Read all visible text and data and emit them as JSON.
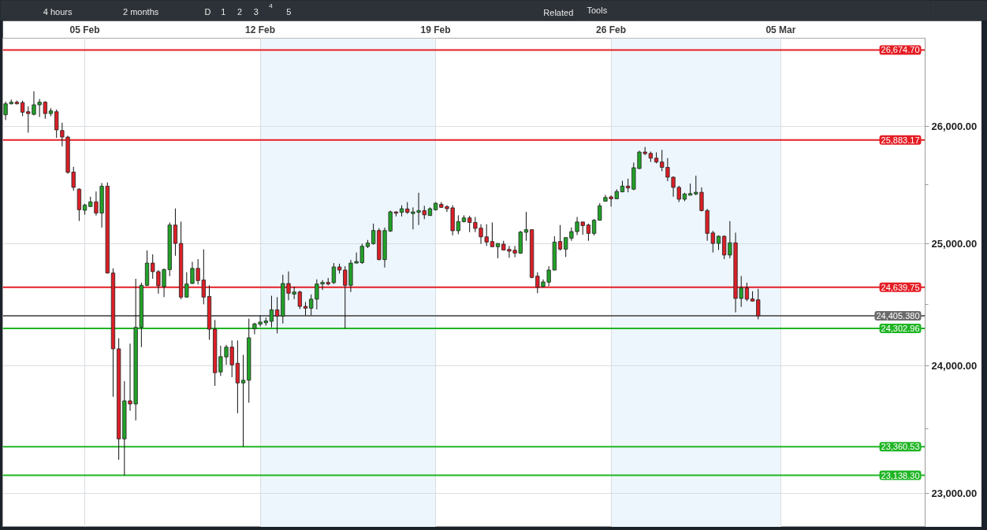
{
  "chart_data": {
    "type": "candlestick",
    "log": true,
    "grid": true,
    "categories": [
      null,
      null,
      null,
      null,
      null,
      null,
      null,
      null,
      null,
      null,
      null,
      null,
      null,
      null,
      "05 Feb",
      null,
      null,
      null,
      null,
      null,
      null,
      null,
      null,
      null,
      null,
      null,
      null,
      null,
      null,
      null,
      null,
      null,
      null,
      null,
      null,
      null,
      null,
      null,
      null,
      null,
      null,
      null,
      null,
      null,
      null,
      "12 Feb",
      null,
      null,
      null,
      null,
      null,
      null,
      null,
      null,
      null,
      null,
      null,
      null,
      null,
      null,
      null,
      null,
      null,
      null,
      null,
      null,
      null,
      null,
      null,
      null,
      null,
      null,
      null,
      null,
      null,
      null,
      "19 Feb",
      null,
      null,
      null,
      null,
      null,
      null,
      null,
      null,
      null,
      null,
      null,
      null,
      null,
      null,
      null,
      null,
      null,
      null,
      null,
      null,
      null,
      null,
      null,
      null,
      null,
      null,
      null,
      null,
      null,
      null,
      "26 Feb",
      null,
      null,
      null,
      null,
      null,
      null,
      null,
      null,
      null,
      null,
      null,
      null,
      null,
      null,
      null,
      null,
      null,
      null,
      null,
      null,
      null,
      null,
      null,
      null,
      null,
      null,
      null,
      null,
      null,
      "05 Mar",
      null,
      null,
      null,
      null,
      null,
      null,
      null,
      null,
      null,
      null,
      null,
      null,
      null,
      null,
      null,
      null,
      null,
      null,
      null,
      null,
      null,
      null,
      null,
      null,
      null
    ],
    "ohlc": [
      [
        26103,
        26218,
        26057,
        26199
      ],
      [
        26199,
        26236,
        26194,
        26213
      ],
      [
        26213,
        26227,
        26194,
        26199
      ],
      [
        26210,
        26227,
        26091,
        26125
      ],
      [
        26130,
        26176,
        25947,
        26114
      ],
      [
        26107,
        26309,
        26098,
        26190
      ],
      [
        26190,
        26241,
        26084,
        26213
      ],
      [
        26213,
        26222,
        26068,
        26114
      ],
      [
        26114,
        26160,
        26091,
        26137
      ],
      [
        26130,
        26149,
        25902,
        25971
      ],
      [
        25966,
        26034,
        25829,
        25909
      ],
      [
        25909,
        25920,
        25594,
        25605
      ],
      [
        25608,
        25653,
        25449,
        25477
      ],
      [
        25462,
        25469,
        25192,
        25287
      ],
      [
        25283,
        25338,
        25246,
        25327
      ],
      [
        25314,
        25397,
        25310,
        25354
      ],
      [
        25354,
        25442,
        25238,
        25259
      ],
      [
        25259,
        25514,
        25137,
        25487
      ],
      [
        25487,
        25519,
        24753,
        24758
      ],
      [
        24758,
        24796,
        23754,
        24138
      ],
      [
        24138,
        24223,
        23259,
        23422
      ],
      [
        23422,
        23879,
        23138.3,
        23722
      ],
      [
        23722,
        24180,
        23643,
        23697
      ],
      [
        23697,
        24710,
        23567,
        24312
      ],
      [
        24312,
        24678,
        24152,
        24656
      ],
      [
        24656,
        24945,
        24650,
        24840
      ],
      [
        24840,
        24913,
        24710,
        24769
      ],
      [
        24769,
        24782,
        24587,
        24652
      ],
      [
        24645,
        24796,
        24559,
        24786
      ],
      [
        24786,
        25180,
        24732,
        25158
      ],
      [
        25158,
        25298,
        24901,
        25004
      ],
      [
        25004,
        25187,
        24542,
        24559
      ],
      [
        24559,
        24764,
        24555,
        24667
      ],
      [
        24671,
        24851,
        24668,
        24796
      ],
      [
        24796,
        24873,
        24663,
        24695
      ],
      [
        24700,
        24954,
        24500,
        24559
      ],
      [
        24564,
        24656,
        24212,
        24297
      ],
      [
        24297,
        24372,
        23841,
        23946
      ],
      [
        23952,
        24163,
        23920,
        24075
      ],
      [
        24073,
        24170,
        24009,
        24152
      ],
      [
        24152,
        24206,
        23910,
        24009
      ],
      [
        24022,
        24206,
        23624,
        23864
      ],
      [
        23864,
        24089,
        23360.53,
        23886
      ],
      [
        23886,
        24383,
        23707,
        24227
      ],
      [
        24301,
        24349,
        24255,
        24340
      ],
      [
        24337,
        24409,
        24318,
        24355
      ],
      [
        24349,
        24391,
        24325,
        24364
      ],
      [
        24361,
        24570,
        24312,
        24455
      ],
      [
        24455,
        24559,
        24263,
        24403
      ],
      [
        24403,
        24743,
        24343,
        24671
      ],
      [
        24671,
        24771,
        24533,
        24591
      ],
      [
        24584,
        24645,
        24542,
        24601
      ],
      [
        24601,
        24612,
        24461,
        24483
      ],
      [
        24483,
        24519,
        24409,
        24468
      ],
      [
        24468,
        24581,
        24409,
        24542
      ],
      [
        24542,
        24705,
        24458,
        24667
      ],
      [
        24667,
        24699,
        24618,
        24680
      ],
      [
        24680,
        24717,
        24656,
        24667
      ],
      [
        24678,
        24840,
        24667,
        24808
      ],
      [
        24808,
        24835,
        24753,
        24782
      ],
      [
        24782,
        24814,
        24302.96,
        24656
      ],
      [
        24656,
        24867,
        24601,
        24840
      ],
      [
        24840,
        24928,
        24838,
        24853
      ],
      [
        24844,
        25002,
        24833,
        24980
      ],
      [
        24978,
        25033,
        24965,
        25007
      ],
      [
        25002,
        25170,
        24993,
        25112
      ],
      [
        25112,
        25132,
        24863,
        24869
      ],
      [
        24869,
        25137,
        24803,
        25112
      ],
      [
        25108,
        25280,
        25099,
        25269
      ],
      [
        25269,
        25273,
        25231,
        25258
      ],
      [
        25265,
        25325,
        25231,
        25296
      ],
      [
        25294,
        25352,
        25252,
        25265
      ],
      [
        25255,
        25307,
        25121,
        25269
      ],
      [
        25265,
        25431,
        25158,
        25280
      ],
      [
        25280,
        25320,
        25208,
        25244
      ],
      [
        25238,
        25307,
        25238,
        25296
      ],
      [
        25287,
        25352,
        25280,
        25342
      ],
      [
        25333,
        25352,
        25302,
        25307
      ],
      [
        25314,
        25325,
        25269,
        25296
      ],
      [
        25303,
        25325,
        25071,
        25110
      ],
      [
        25110,
        25240,
        25081,
        25187
      ],
      [
        25187,
        25240,
        25180,
        25218
      ],
      [
        25218,
        25236,
        25099,
        25180
      ],
      [
        25180,
        25226,
        25099,
        25130
      ],
      [
        25132,
        25165,
        25000,
        25059
      ],
      [
        25059,
        25165,
        24983,
        25015
      ],
      [
        25020,
        25180,
        24976,
        24976
      ],
      [
        24976,
        25004,
        24880,
        25004
      ],
      [
        24998,
        25026,
        24945,
        24949
      ],
      [
        24954,
        24983,
        24884,
        24939
      ],
      [
        24947,
        24983,
        24889,
        24923
      ],
      [
        24923,
        25108,
        24917,
        25099
      ],
      [
        25097,
        25269,
        25026,
        25119
      ],
      [
        25119,
        25119,
        24714,
        24721
      ],
      [
        24732,
        24764,
        24591,
        24639.75
      ],
      [
        24645,
        24705,
        24640,
        24684
      ],
      [
        24682,
        24814,
        24649,
        24782
      ],
      [
        24782,
        25064,
        24780,
        25015
      ],
      [
        25020,
        25158,
        24945,
        24956
      ],
      [
        24956,
        25053,
        24891,
        25053
      ],
      [
        25048,
        25137,
        25026,
        25103
      ],
      [
        25103,
        25226,
        25074,
        25184
      ],
      [
        25184,
        25184,
        25077,
        25153
      ],
      [
        25158,
        25170,
        25026,
        25088
      ],
      [
        25088,
        25209,
        25071,
        25198
      ],
      [
        25198,
        25342,
        25196,
        25320
      ],
      [
        25359,
        25413,
        25359,
        25391
      ],
      [
        25396,
        25409,
        25314,
        25380
      ],
      [
        25380,
        25460,
        25380,
        25442
      ],
      [
        25439,
        25533,
        25435,
        25488
      ],
      [
        25488,
        25551,
        25435,
        25472
      ],
      [
        25462,
        25689,
        25453,
        25645
      ],
      [
        25638,
        25791,
        25633,
        25780
      ],
      [
        25780,
        25823,
        25753,
        25766
      ],
      [
        25768,
        25784,
        25694,
        25727
      ],
      [
        25727,
        25777,
        25682,
        25694
      ],
      [
        25694,
        25798,
        25615,
        25648
      ],
      [
        25648,
        25727,
        25530,
        25564
      ],
      [
        25564,
        25570,
        25397,
        25477
      ],
      [
        25477,
        25491,
        25352,
        25376
      ],
      [
        25376,
        25431,
        25359,
        25421
      ],
      [
        25410,
        25509,
        25410,
        25424
      ],
      [
        25421,
        25577,
        25410,
        25435
      ],
      [
        25435,
        25477,
        25273,
        25280
      ],
      [
        25280,
        25294,
        25026,
        25088
      ],
      [
        25092,
        25110,
        24928,
        25004
      ],
      [
        25004,
        25071,
        24949,
        25064
      ],
      [
        25064,
        25071,
        24873,
        24907
      ],
      [
        24907,
        25191,
        24880,
        25009
      ],
      [
        25009,
        25094,
        24434,
        24548
      ],
      [
        24548,
        24732,
        24479,
        24635
      ],
      [
        24635,
        24678,
        24526,
        24542
      ],
      [
        24544,
        24607,
        24526,
        24526
      ],
      [
        24537,
        24627,
        24377,
        24405.38
      ],
      null,
      null,
      null,
      null,
      null,
      null,
      null,
      null,
      null,
      null,
      null,
      null,
      null,
      null,
      null,
      null,
      null,
      null,
      null,
      null,
      null,
      null,
      null,
      null,
      null,
      null,
      null,
      null,
      null
    ],
    "ylim": [
      22740,
      26780
    ],
    "yticks": [
      {
        "value": 23000,
        "label": "23,000.00"
      },
      {
        "value": 23500,
        "label": null
      },
      {
        "value": 24000,
        "label": "24,000.00"
      },
      {
        "value": 24500,
        "label": null
      },
      {
        "value": 25000,
        "label": "25,000.00"
      },
      {
        "value": 25500,
        "label": null
      },
      {
        "value": 26000,
        "label": "26,000.00"
      }
    ],
    "ref_lines": [
      {
        "axis": "y",
        "value": 26674.7,
        "label": "26,674.70",
        "color": "#e41e25"
      },
      {
        "axis": "y",
        "value": 25883.17,
        "label": "25,883.17",
        "color": "#e41e25"
      },
      {
        "axis": "y",
        "value": 24639.75,
        "label": "24,639.75",
        "color": "#e41e25"
      },
      {
        "axis": "y",
        "value": 24405.38,
        "label": "24,405.380",
        "color": "#6a6a6a"
      },
      {
        "axis": "y",
        "value": 24302.96,
        "label": "24,302.96",
        "color": "#1fb524"
      },
      {
        "axis": "y",
        "value": 23360.53,
        "label": "23,360.53",
        "color": "#1fb524"
      },
      {
        "axis": "y",
        "value": 23138.3,
        "label": "23,138.30",
        "color": "#1fb524"
      }
    ],
    "bands": [
      {
        "axis": "x",
        "from": "12 Feb",
        "to": "19 Feb",
        "color": "#eef6fd"
      },
      {
        "axis": "x",
        "from": "26 Feb",
        "to": "05 Mar",
        "color": "#eef6fd"
      }
    ],
    "annotations": [
      "4 hours",
      "2 months",
      "D",
      "1",
      "2",
      "3",
      "4",
      "5",
      "Related",
      "Tools"
    ]
  }
}
